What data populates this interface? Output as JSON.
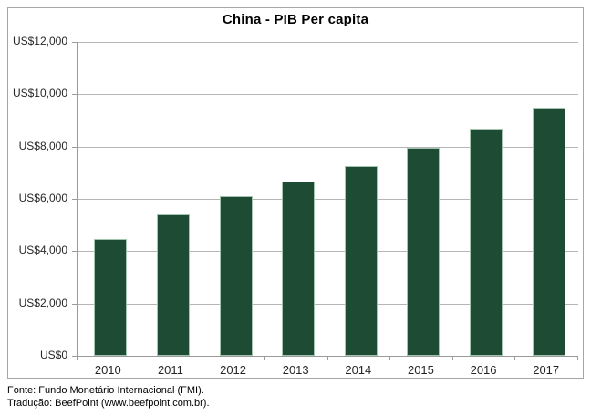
{
  "window": {
    "background": "#ffffff"
  },
  "chart_data": {
    "type": "bar",
    "title": "China - PIB Per capita",
    "categories": [
      "2010",
      "2011",
      "2012",
      "2013",
      "2014",
      "2015",
      "2016",
      "2017"
    ],
    "values": [
      4450,
      5400,
      6100,
      6650,
      7250,
      7950,
      8700,
      9500
    ],
    "xlabel": "",
    "ylabel": "",
    "ylim": [
      0,
      12000
    ],
    "ytick_interval": 2000,
    "ytick_labels": [
      "US$0",
      "US$2,000",
      "US$4,000",
      "US$6,000",
      "US$8,000",
      "US$10,000",
      "US$12,000"
    ],
    "grid": true,
    "legend": "none",
    "bar_color": "#1d4b33",
    "bar_border_color": "#a3c4ae"
  },
  "footer": {
    "source": "Fonte: Fundo Monetário Internacional (FMI).",
    "translation": "Tradução: BeefPoint (www.beefpoint.com.br)."
  },
  "colors": {
    "bar": "#1d4b33",
    "gridline": "#b5b5b5",
    "axis": "#9b9b9b",
    "frame_border": "#a6a6a6",
    "text": "#262626"
  }
}
